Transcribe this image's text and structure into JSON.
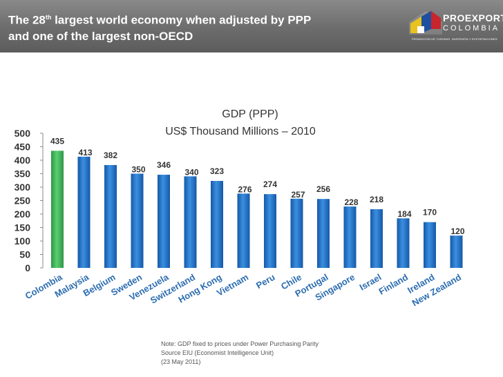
{
  "header": {
    "title_part1": "The 28",
    "title_sup": "th",
    "title_part2": " largest world economy when adjusted by PPP",
    "title_line2": "and one of the largest non-OECD"
  },
  "logo": {
    "word1": "PROEXPORT",
    "word2": "COLOMBIA",
    "tagline": "PROMOCIÓN DE TURISMO, INVERSIÓN Y EXPORTACIONES"
  },
  "chart_data": {
    "type": "bar",
    "title": "GDP (PPP)",
    "subtitle": "US$ Thousand Millions – 2010",
    "categories": [
      "Colombia",
      "Malaysia",
      "Belgium",
      "Sweden",
      "Venezuela",
      "Switzerland",
      "Hong Kong",
      "Vietnam",
      "Peru",
      "Chile",
      "Portugal",
      "Singapore",
      "Israel",
      "Finland",
      "Ireland",
      "New Zealand"
    ],
    "values": [
      435,
      413,
      382,
      350,
      346,
      340,
      323,
      276,
      274,
      257,
      256,
      228,
      218,
      184,
      170,
      120
    ],
    "ylim": [
      0,
      500
    ],
    "yticks": [
      0,
      50,
      100,
      150,
      200,
      250,
      300,
      350,
      400,
      450,
      500
    ],
    "grid": false,
    "colors": {
      "highlight": "#3fb55a",
      "bar": "#1e73c8"
    },
    "highlight_index": 0
  },
  "note": {
    "line1": "Note: GDP fixed to prices under Power Purchasing Parity",
    "line2": "Source EIU (Economist Intelligence Unit)",
    "line3": "(23 May 2011)"
  }
}
